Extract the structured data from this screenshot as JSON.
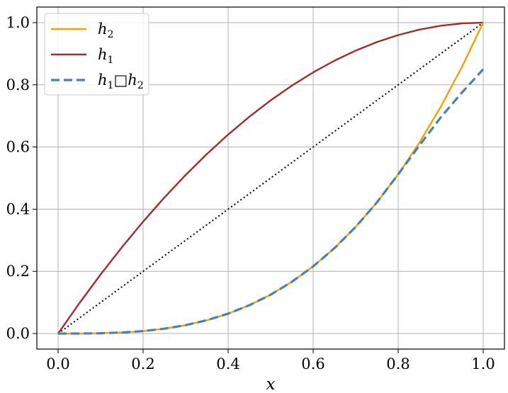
{
  "chart_data": {
    "type": "line",
    "title": "",
    "xlabel": "x",
    "ylabel": "",
    "xlim": [
      -0.05,
      1.05
    ],
    "ylim": [
      -0.05,
      1.05
    ],
    "grid": true,
    "legend_position": "top-left",
    "xticks": [
      0.0,
      0.2,
      0.4,
      0.6,
      0.8,
      1.0
    ],
    "yticks": [
      0.0,
      0.2,
      0.4,
      0.6,
      0.8,
      1.0
    ],
    "xtick_labels": [
      "0.0",
      "0.2",
      "0.4",
      "0.6",
      "0.8",
      "1.0"
    ],
    "ytick_labels": [
      "0.0",
      "0.2",
      "0.4",
      "0.6",
      "0.8",
      "1.0"
    ],
    "x": [
      0.0,
      0.05,
      0.1,
      0.15,
      0.2,
      0.25,
      0.3,
      0.35,
      0.4,
      0.45,
      0.5,
      0.55,
      0.6,
      0.65,
      0.7,
      0.75,
      0.8,
      0.85,
      0.9,
      0.95,
      1.0
    ],
    "series": [
      {
        "name": "h2",
        "legend_main": "h",
        "legend_sub": "2",
        "color": "#f5a000",
        "style": "solid",
        "values": [
          0.0,
          0.0001,
          0.001,
          0.0034,
          0.008,
          0.0156,
          0.027,
          0.0429,
          0.064,
          0.0911,
          0.125,
          0.1664,
          0.216,
          0.2746,
          0.343,
          0.4219,
          0.512,
          0.6141,
          0.729,
          0.8574,
          1.0
        ]
      },
      {
        "name": "h1",
        "legend_main": "h",
        "legend_sub": "1",
        "color": "#a52a2a",
        "style": "solid",
        "values": [
          0.0,
          0.0975,
          0.19,
          0.2775,
          0.36,
          0.4375,
          0.51,
          0.5775,
          0.64,
          0.6975,
          0.75,
          0.7975,
          0.84,
          0.8775,
          0.91,
          0.9375,
          0.96,
          0.9775,
          0.99,
          0.9975,
          1.0
        ]
      },
      {
        "name": "h1□h2",
        "legend_main": "h",
        "legend_sub": "1",
        "legend_main2": "□h",
        "legend_sub2": "2",
        "color": "#4682b4",
        "style": "dashed",
        "values": [
          0.0,
          0.0001,
          0.001,
          0.0034,
          0.008,
          0.0156,
          0.027,
          0.0429,
          0.064,
          0.0911,
          0.125,
          0.1664,
          0.216,
          0.2746,
          0.343,
          0.4219,
          0.512,
          0.605,
          0.695,
          0.775,
          0.85
        ]
      },
      {
        "name": "",
        "color": "#000000",
        "style": "dotted",
        "values": [
          0.0,
          0.05,
          0.1,
          0.15,
          0.2,
          0.25,
          0.3,
          0.35,
          0.4,
          0.45,
          0.5,
          0.55,
          0.6,
          0.65,
          0.7,
          0.75,
          0.8,
          0.85,
          0.9,
          0.95,
          1.0
        ]
      }
    ]
  }
}
